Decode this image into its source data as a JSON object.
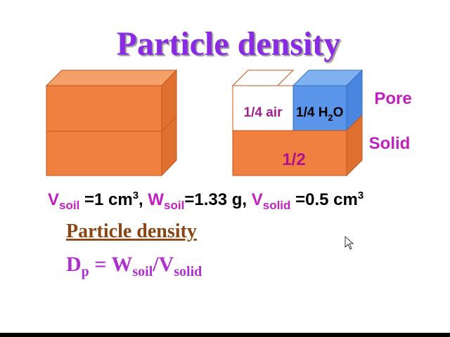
{
  "title": "Particle density",
  "diagram": {
    "air": "1/4 air",
    "water": [
      "1/4 H",
      "2",
      "O"
    ],
    "pore": "Pore",
    "solid": "Solid",
    "solid_fraction": "1/2"
  },
  "given": [
    "V",
    "soil",
    " =1 cm",
    "3",
    ", ",
    "W",
    "soil",
    "=1.33 g, ",
    "V",
    "solid",
    " =0.5 cm",
    "3"
  ],
  "subheading": "Particle density",
  "formula": [
    "D",
    "p",
    " = W",
    "soil",
    "/V",
    "solid"
  ]
}
